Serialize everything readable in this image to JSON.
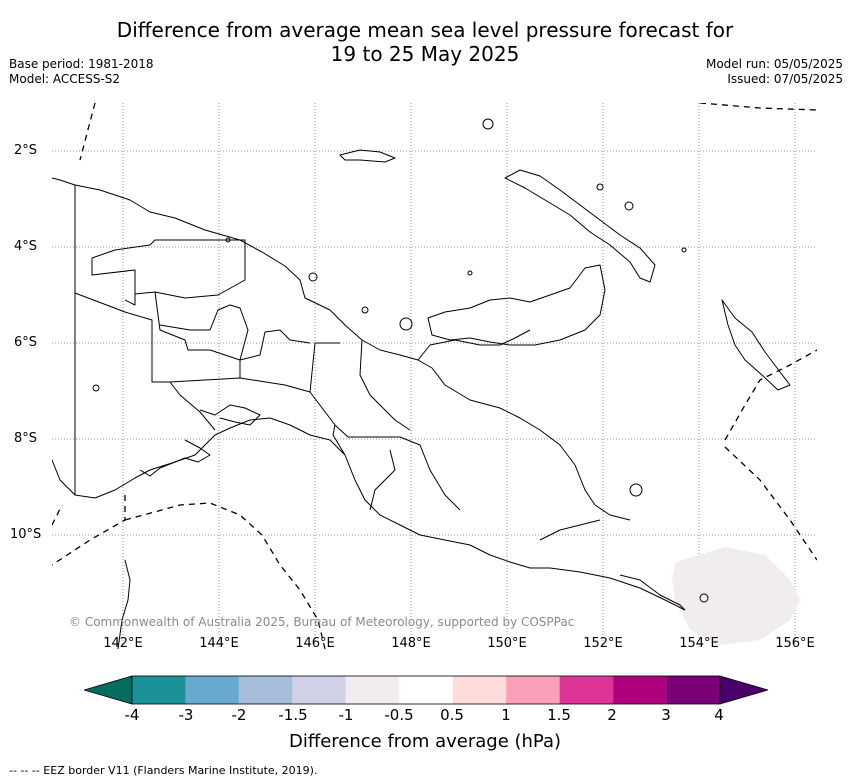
{
  "title_line1": "Difference from average mean sea level pressure forecast for",
  "title_line2": "19 to 25 May 2025",
  "base_period": "Base period: 1981-2018",
  "model": "Model: ACCESS-S2",
  "model_run": "Model run: 05/05/2025",
  "issued": "Issued: 07/05/2025",
  "lat_labels": [
    "2°S",
    "4°S",
    "6°S",
    "8°S",
    "10°S"
  ],
  "lon_labels": [
    "142°E",
    "144°E",
    "146°E",
    "148°E",
    "150°E",
    "152°E",
    "154°E",
    "156°E"
  ],
  "copyright": "© Commonwealth of Australia 2025, Bureau of Meteorology, supported by COSPPac",
  "colorbar": {
    "ticks": [
      "-4",
      "-3",
      "-2",
      "-1.5",
      "-1",
      "-0.5",
      "0.5",
      "1",
      "1.5",
      "2",
      "3",
      "4"
    ],
    "colors": [
      "#066d5e",
      "#1b9299",
      "#67a9cf",
      "#a6bddb",
      "#d0d1e6",
      "#f0ecf0",
      "#ffffff",
      "#fddbdb",
      "#f9a0b8",
      "#dd3497",
      "#ae017e",
      "#7a0177",
      "#49006a"
    ],
    "label": "Difference from average (hPa)"
  },
  "eez_note": "--  --  -- EEZ border V11 (Flanders Marine Institute, 2019)."
}
